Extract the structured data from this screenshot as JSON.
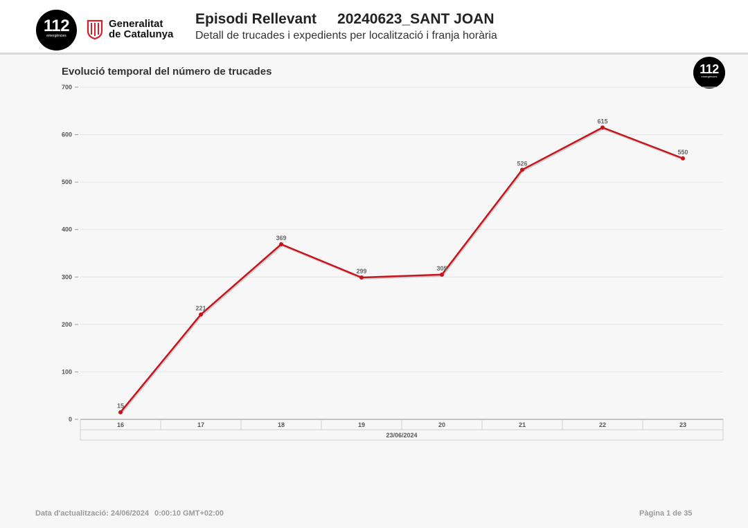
{
  "header": {
    "logo_number": "112",
    "logo_sub": "emergències",
    "gencat_line1": "Generalitat",
    "gencat_line2": "de Catalunya",
    "title": "Episodi Rellevant",
    "episode_code": "20240623_SANT JOAN",
    "subtitle": "Detall de trucades i expedients per localització i franja horària"
  },
  "colors": {
    "line": "#c4161c",
    "logo_bg": "#000000",
    "gencat_red": "#d41f2a"
  },
  "chart_data": {
    "type": "line",
    "title": "Evolució temporal del número de trucades",
    "categories": [
      "16",
      "17",
      "18",
      "19",
      "20",
      "21",
      "22",
      "23"
    ],
    "group_label": "23/06/2024",
    "values": [
      15,
      221,
      369,
      299,
      305,
      526,
      615,
      550
    ],
    "data_labels": [
      "15",
      "221",
      "369",
      "299",
      "305",
      "526",
      "615",
      "550"
    ],
    "ylim": [
      0,
      700
    ],
    "yticks": [
      0,
      100,
      200,
      300,
      400,
      500,
      600,
      700
    ],
    "grid": true,
    "xlabel": "",
    "ylabel": ""
  },
  "footer": {
    "updated_label": "Data d'actualització: 24/06/2024",
    "updated_time": "0:00:10 GMT+02:00",
    "page": "Pàgina 1 de 35"
  }
}
